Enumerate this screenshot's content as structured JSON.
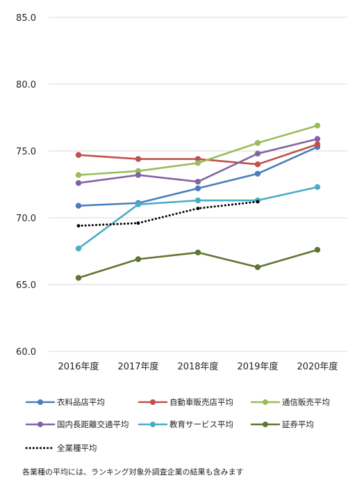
{
  "chart_data": {
    "type": "line",
    "categories": [
      "2016年度",
      "2017年度",
      "2018年度",
      "2019年度",
      "2020年度"
    ],
    "ylim": [
      60,
      85
    ],
    "yticks": [
      "60.0",
      "65.0",
      "70.0",
      "75.0",
      "80.0",
      "85.0"
    ],
    "grid": true,
    "legend_position": "bottom",
    "series": [
      {
        "name": "衣料品店平均",
        "color": "#4a7ebb",
        "style": "solid",
        "values": [
          70.9,
          71.1,
          72.2,
          73.3,
          75.3
        ]
      },
      {
        "name": "自動車販売店平均",
        "color": "#c0504d",
        "style": "solid",
        "values": [
          74.7,
          74.4,
          74.4,
          74.0,
          75.5
        ]
      },
      {
        "name": "通信販売平均",
        "color": "#9bbb59",
        "style": "solid",
        "values": [
          73.2,
          73.5,
          74.1,
          75.6,
          76.9
        ]
      },
      {
        "name": "国内長距離交通平均",
        "color": "#8064a2",
        "style": "solid",
        "values": [
          72.6,
          73.2,
          72.7,
          74.8,
          75.9
        ]
      },
      {
        "name": "教育サービス平均",
        "color": "#4bacc6",
        "style": "solid",
        "values": [
          67.7,
          71.0,
          71.3,
          71.3,
          72.3
        ]
      },
      {
        "name": "証券平均",
        "color": "#5f7530",
        "style": "solid",
        "values": [
          65.5,
          66.9,
          67.4,
          66.3,
          67.6
        ]
      },
      {
        "name": "全業種平均",
        "color": "#000000",
        "style": "dotted",
        "values": [
          69.4,
          69.6,
          70.7,
          71.2,
          null
        ]
      }
    ],
    "note": "各業種の平均には、ランキング対象外調査企業の結果も含みます"
  }
}
